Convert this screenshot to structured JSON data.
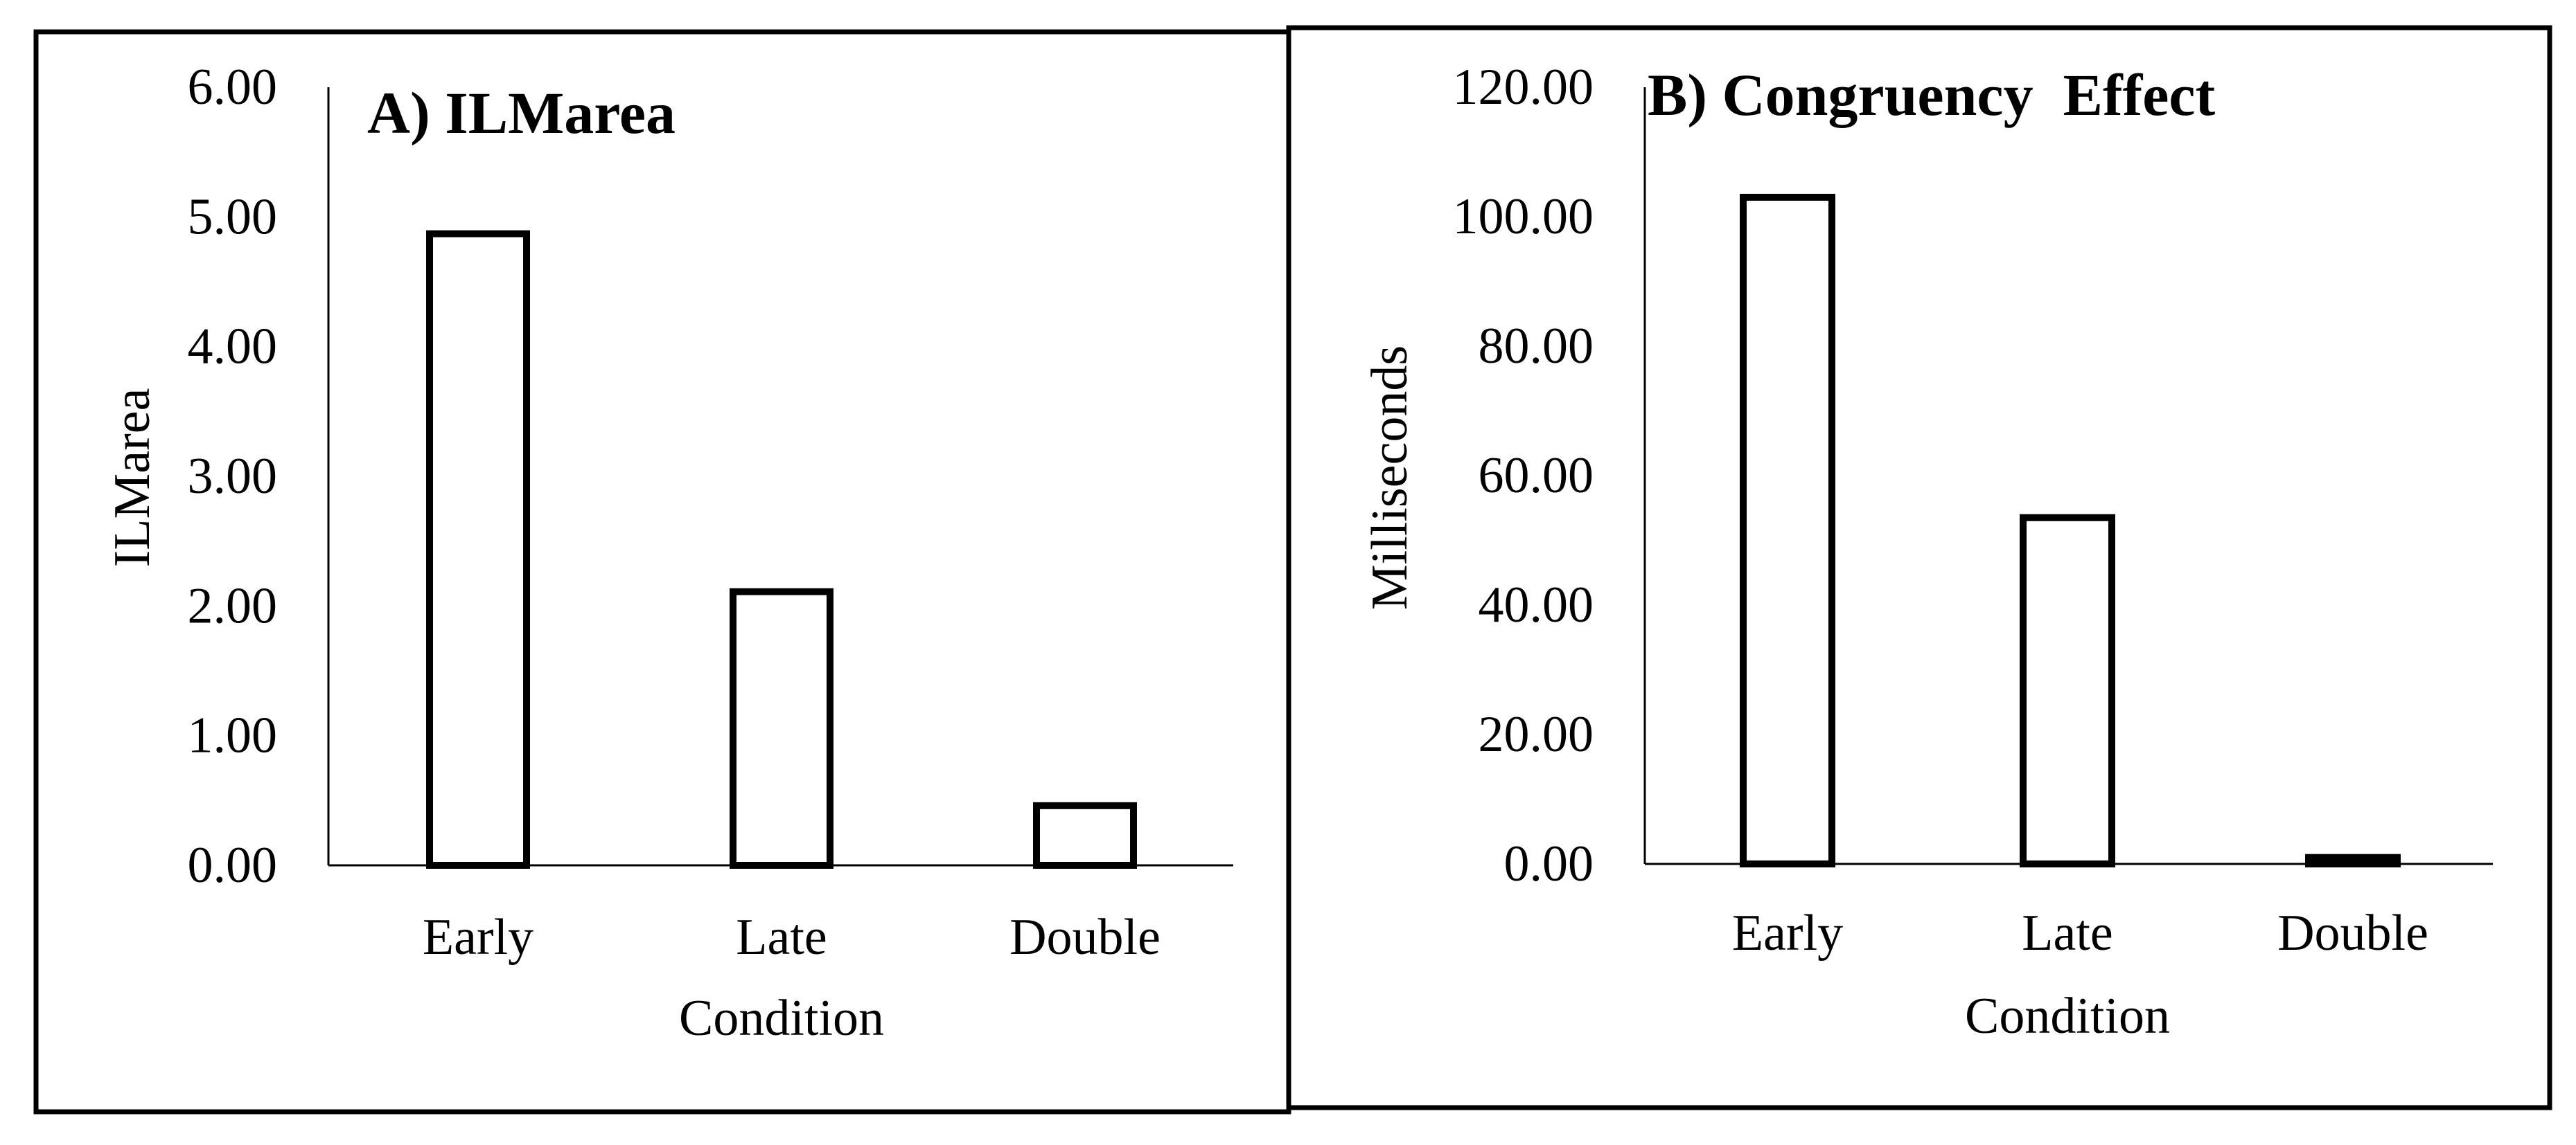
{
  "chart_data": [
    {
      "type": "bar",
      "title": "A) ILMarea",
      "xlabel": "Condition",
      "ylabel": "ILMarea",
      "categories": [
        "Early",
        "Late",
        "Double"
      ],
      "values": [
        4.87,
        2.11,
        0.46
      ],
      "ylim": [
        0,
        6
      ],
      "yticks": [
        "0.00",
        "1.00",
        "2.00",
        "3.00",
        "4.00",
        "5.00",
        "6.00"
      ],
      "grid": false,
      "bar_fill": "#ffffff",
      "bar_stroke": "#000000"
    },
    {
      "type": "bar",
      "title": "B) Congruency  Effect",
      "xlabel": "Condition",
      "ylabel": "Milliseconds",
      "categories": [
        "Early",
        "Late",
        "Double"
      ],
      "values": [
        103.0,
        53.5,
        1.0
      ],
      "ylim": [
        0,
        120
      ],
      "yticks": [
        "0.00",
        "20.00",
        "40.00",
        "60.00",
        "80.00",
        "100.00",
        "120.00"
      ],
      "grid": false,
      "bar_fill": "#ffffff",
      "bar_stroke": "#000000"
    }
  ]
}
